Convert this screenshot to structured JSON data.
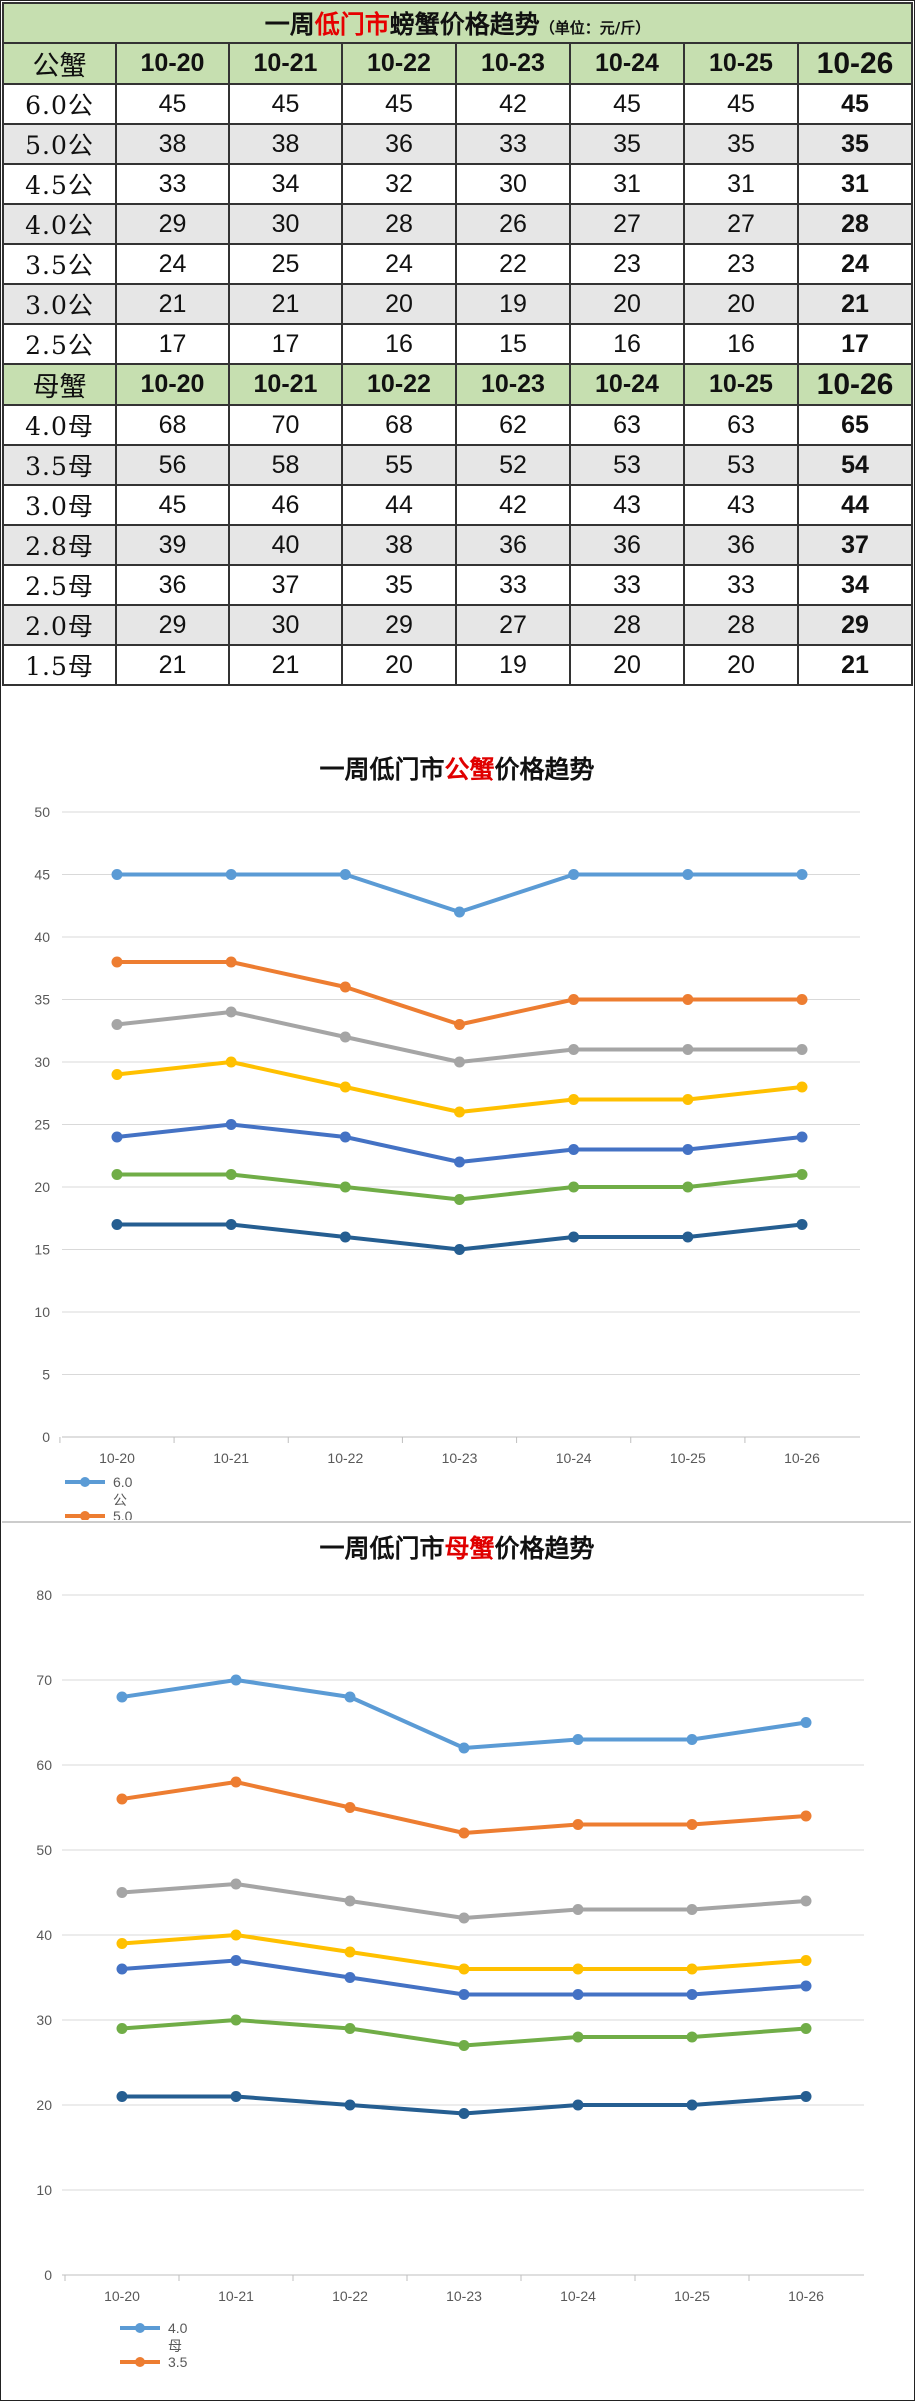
{
  "table": {
    "title_pre": "一周",
    "title_red": "低门市",
    "title_post": "螃蟹价格趋势",
    "title_unit": "（单位：元/斤）",
    "male": {
      "header": "公蟹",
      "dates": [
        "10-20",
        "10-21",
        "10-22",
        "10-23",
        "10-24",
        "10-25",
        "10-26"
      ],
      "rows": [
        {
          "label": "6.0公",
          "values": [
            "45",
            "45",
            "45",
            "42",
            "45",
            "45",
            "45"
          ]
        },
        {
          "label": "5.0公",
          "values": [
            "38",
            "38",
            "36",
            "33",
            "35",
            "35",
            "35"
          ]
        },
        {
          "label": "4.5公",
          "values": [
            "33",
            "34",
            "32",
            "30",
            "31",
            "31",
            "31"
          ]
        },
        {
          "label": "4.0公",
          "values": [
            "29",
            "30",
            "28",
            "26",
            "27",
            "27",
            "28"
          ]
        },
        {
          "label": "3.5公",
          "values": [
            "24",
            "25",
            "24",
            "22",
            "23",
            "23",
            "24"
          ]
        },
        {
          "label": "3.0公",
          "values": [
            "21",
            "21",
            "20",
            "19",
            "20",
            "20",
            "21"
          ]
        },
        {
          "label": "2.5公",
          "values": [
            "17",
            "17",
            "16",
            "15",
            "16",
            "16",
            "17"
          ]
        }
      ]
    },
    "female": {
      "header": "母蟹",
      "dates": [
        "10-20",
        "10-21",
        "10-22",
        "10-23",
        "10-24",
        "10-25",
        "10-26"
      ],
      "rows": [
        {
          "label": "4.0母",
          "values": [
            "68",
            "70",
            "68",
            "62",
            "63",
            "63",
            "65"
          ]
        },
        {
          "label": "3.5母",
          "values": [
            "56",
            "58",
            "55",
            "52",
            "53",
            "53",
            "54"
          ]
        },
        {
          "label": "3.0母",
          "values": [
            "45",
            "46",
            "44",
            "42",
            "43",
            "43",
            "44"
          ]
        },
        {
          "label": "2.8母",
          "values": [
            "39",
            "40",
            "38",
            "36",
            "36",
            "36",
            "37"
          ]
        },
        {
          "label": "2.5母",
          "values": [
            "36",
            "37",
            "35",
            "33",
            "33",
            "33",
            "34"
          ]
        },
        {
          "label": "2.0母",
          "values": [
            "29",
            "30",
            "29",
            "27",
            "28",
            "28",
            "29"
          ]
        },
        {
          "label": "1.5母",
          "values": [
            "21",
            "21",
            "20",
            "19",
            "20",
            "20",
            "21"
          ]
        }
      ]
    }
  },
  "chart_data": [
    {
      "type": "line",
      "title_pre": "一周低门市",
      "title_red": "公蟹",
      "title_post": "价格趋势",
      "categories": [
        "10-20",
        "10-21",
        "10-22",
        "10-23",
        "10-24",
        "10-25",
        "10-26"
      ],
      "ylim": [
        0,
        50
      ],
      "yticks": [
        "0",
        "5",
        "10",
        "15",
        "20",
        "25",
        "30",
        "35",
        "40",
        "45",
        "50"
      ],
      "grid": true,
      "legend_position": "bottom-left",
      "legend_entries": [
        {
          "label": "6.0",
          "label2": "公",
          "color": "#5b9bd5"
        },
        {
          "label": "5.0",
          "label2": "",
          "color": "#ed7d31"
        }
      ],
      "series": [
        {
          "values": [
            45,
            45,
            45,
            42,
            45,
            45,
            45
          ],
          "color": "#5b9bd5"
        },
        {
          "values": [
            38,
            38,
            36,
            33,
            35,
            35,
            35
          ],
          "color": "#ed7d31"
        },
        {
          "values": [
            33,
            34,
            32,
            30,
            31,
            31,
            31
          ],
          "color": "#a5a5a5"
        },
        {
          "values": [
            29,
            30,
            28,
            26,
            27,
            27,
            28
          ],
          "color": "#ffc000"
        },
        {
          "values": [
            24,
            25,
            24,
            22,
            23,
            23,
            24
          ],
          "color": "#4472c4"
        },
        {
          "values": [
            21,
            21,
            20,
            19,
            20,
            20,
            21
          ],
          "color": "#70ad47"
        },
        {
          "values": [
            17,
            17,
            16,
            15,
            16,
            16,
            17
          ],
          "color": "#255e91"
        }
      ]
    },
    {
      "type": "line",
      "title_pre": "一周低门市",
      "title_red": "母蟹",
      "title_post": "价格趋势",
      "categories": [
        "10-20",
        "10-21",
        "10-22",
        "10-23",
        "10-24",
        "10-25",
        "10-26"
      ],
      "ylim": [
        0,
        80
      ],
      "yticks": [
        "0",
        "10",
        "20",
        "30",
        "40",
        "50",
        "60",
        "70",
        "80"
      ],
      "grid": true,
      "legend_position": "bottom-left",
      "legend_entries": [
        {
          "label": "4.0",
          "label2": "母",
          "color": "#5b9bd5"
        },
        {
          "label": "3.5",
          "label2": "",
          "color": "#ed7d31"
        }
      ],
      "series": [
        {
          "values": [
            68,
            70,
            68,
            62,
            63,
            63,
            65
          ],
          "color": "#5b9bd5"
        },
        {
          "values": [
            56,
            58,
            55,
            52,
            53,
            53,
            54
          ],
          "color": "#ed7d31"
        },
        {
          "values": [
            45,
            46,
            44,
            42,
            43,
            43,
            44
          ],
          "color": "#a5a5a5"
        },
        {
          "values": [
            39,
            40,
            38,
            36,
            36,
            36,
            37
          ],
          "color": "#ffc000"
        },
        {
          "values": [
            36,
            37,
            35,
            33,
            33,
            33,
            34
          ],
          "color": "#4472c4"
        },
        {
          "values": [
            29,
            30,
            29,
            27,
            28,
            28,
            29
          ],
          "color": "#70ad47"
        },
        {
          "values": [
            21,
            21,
            20,
            19,
            20,
            20,
            21
          ],
          "color": "#255e91"
        }
      ]
    }
  ]
}
